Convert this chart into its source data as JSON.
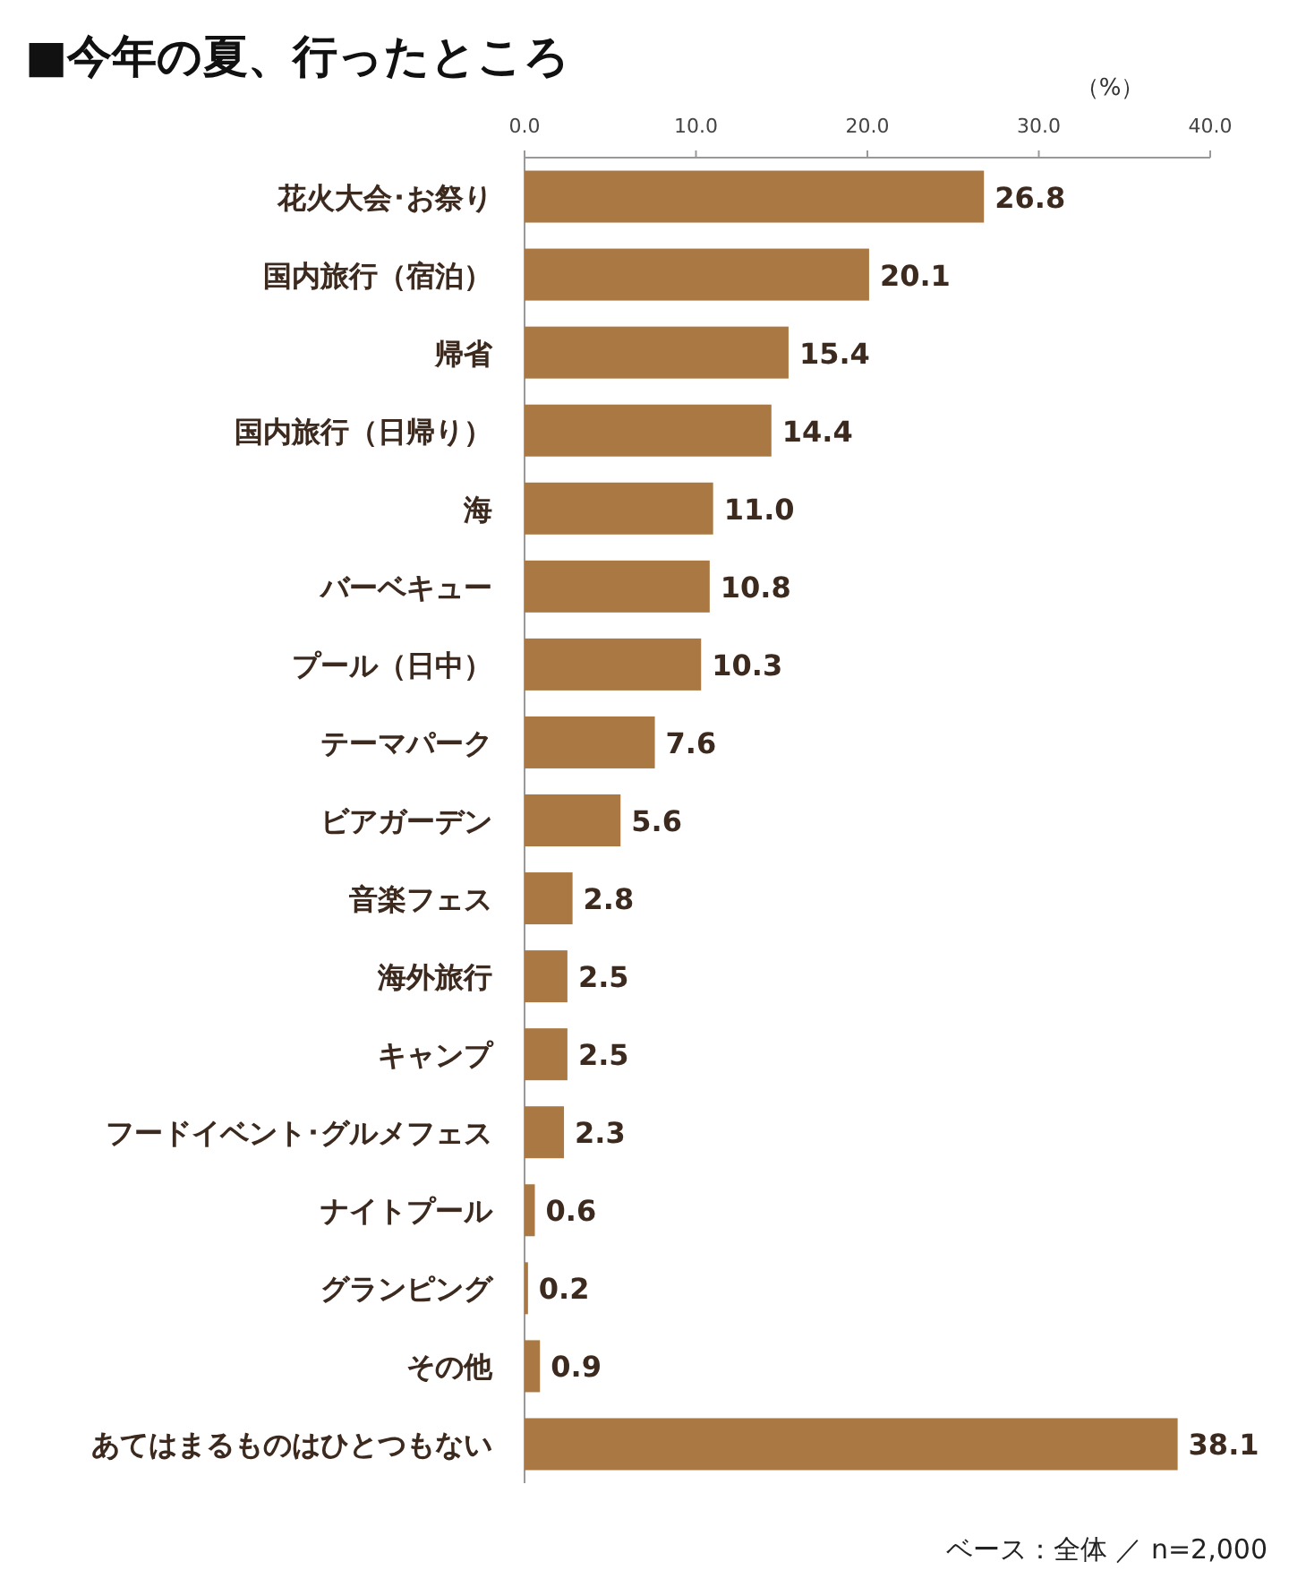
{
  "chart_data": {
    "type": "bar",
    "orientation": "horizontal",
    "title": "■今年の夏、行ったところ",
    "xlabel": "（%）",
    "categories": [
      "花火大会･お祭り",
      "国内旅行（宿泊）",
      "帰省",
      "国内旅行（日帰り）",
      "海",
      "バーベキュー",
      "プール（日中）",
      "テーマパーク",
      "ビアガーデン",
      "音楽フェス",
      "海外旅行",
      "キャンプ",
      "フードイベント･グルメフェス",
      "ナイトプール",
      "グランピング",
      "その他",
      "あてはまるものはひとつもない"
    ],
    "values": [
      26.8,
      20.1,
      15.4,
      14.4,
      11.0,
      10.8,
      10.3,
      7.6,
      5.6,
      2.8,
      2.5,
      2.5,
      2.3,
      0.6,
      0.2,
      0.9,
      38.1
    ],
    "value_labels": [
      "26.8",
      "20.1",
      "15.4",
      "14.4",
      "11.0",
      "10.8",
      "10.3",
      "7.6",
      "5.6",
      "2.8",
      "2.5",
      "2.5",
      "2.3",
      "0.6",
      "0.2",
      "0.9",
      "38.1"
    ],
    "color": "#a97843",
    "xlim": [
      0,
      40
    ],
    "xticks": [
      {
        "value": 0,
        "label": "0.0"
      },
      {
        "value": 10,
        "label": "10.0"
      },
      {
        "value": 20,
        "label": "20.0"
      },
      {
        "value": 30,
        "label": "30.0"
      },
      {
        "value": 40,
        "label": "40.0"
      }
    ],
    "annotations": [
      "ベース：全体 ／ n=2,000"
    ]
  }
}
